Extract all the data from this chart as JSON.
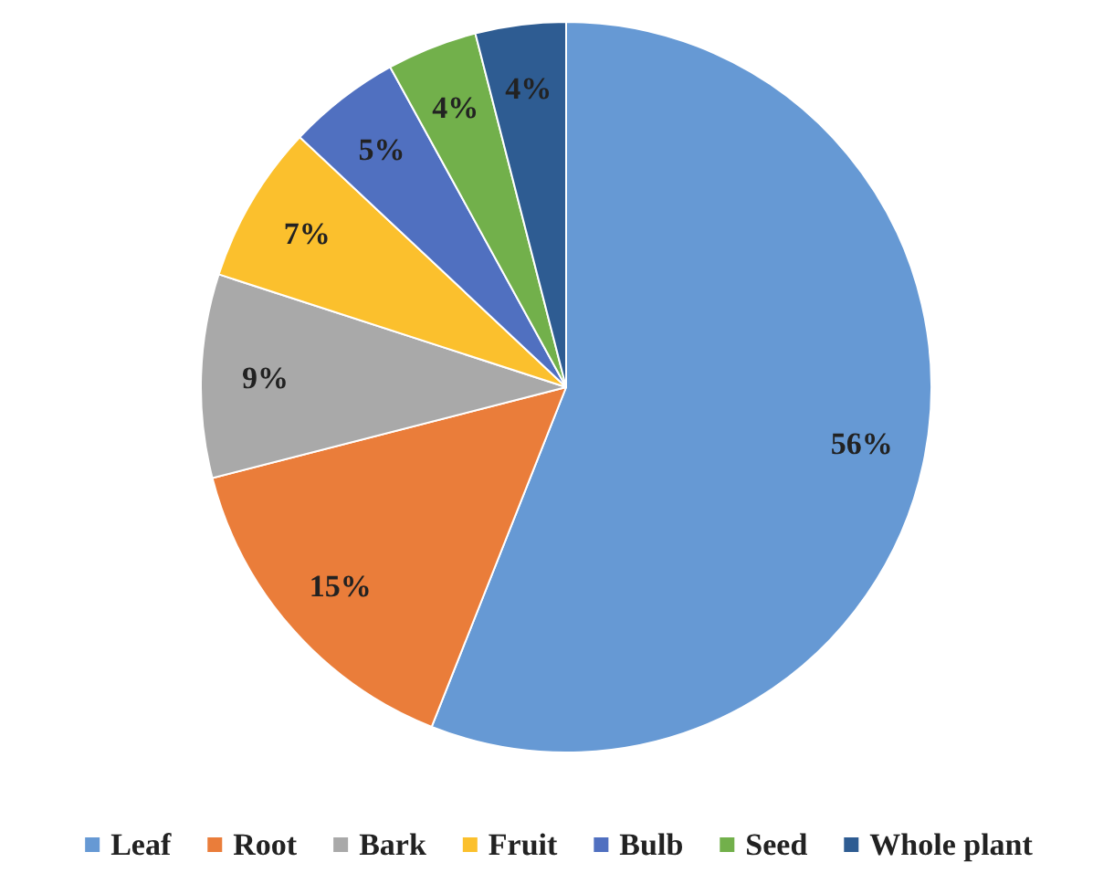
{
  "chart_data": {
    "type": "pie",
    "categories": [
      "Leaf",
      "Root",
      "Bark",
      "Fruit",
      "Bulb",
      "Seed",
      "Whole plant"
    ],
    "values": [
      56,
      15,
      9,
      7,
      5,
      4,
      4
    ],
    "value_labels": [
      "56%",
      "15%",
      "9%",
      "7%",
      "5%",
      "4%",
      "4%"
    ],
    "colors": [
      "#6699d4",
      "#ea7d3a",
      "#a9a9a9",
      "#fbc02d",
      "#5070c0",
      "#72b04b",
      "#2e5c92"
    ],
    "legend": "bottom"
  }
}
